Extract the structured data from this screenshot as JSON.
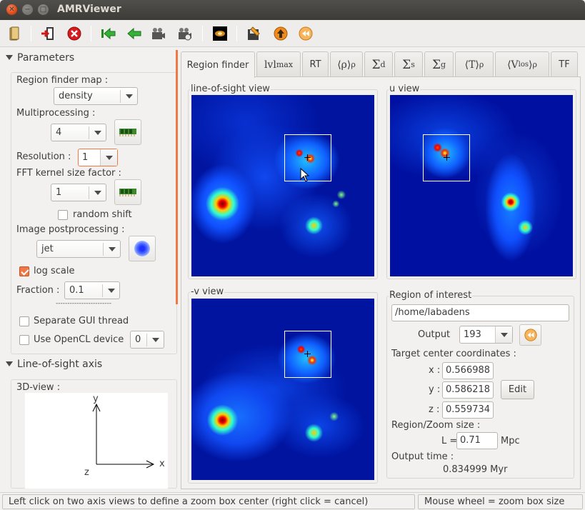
{
  "window": {
    "title": "AMRViewer"
  },
  "toolbar": {
    "icons": [
      "open-folder-icon",
      "exit-icon",
      "stop-icon",
      "first-icon",
      "back-icon",
      "camera-icon",
      "video-icon",
      "galaxy-icon",
      "save-icon",
      "up-icon",
      "rewind-icon"
    ]
  },
  "params": {
    "header": "Parameters",
    "region_map_label": "Region finder map :",
    "region_map_value": "density",
    "multiproc_label": "Multiprocessing :",
    "multiproc_value": "4",
    "resolution_label": "Resolution :",
    "resolution_value": "1",
    "fft_label": "FFT kernel size factor :",
    "fft_value": "1",
    "random_shift_label": "random shift",
    "random_shift_checked": false,
    "postproc_label": "Image postprocessing :",
    "postproc_value": "jet",
    "log_scale_label": "log scale",
    "log_scale_checked": true,
    "fraction_label": "Fraction :",
    "fraction_value": "0.1",
    "dashes": "------------------------",
    "sep_gui_label": "Separate GUI thread",
    "sep_gui_checked": false,
    "opencl_label": "Use OpenCL device",
    "opencl_checked": false,
    "opencl_device": "0"
  },
  "los": {
    "header": "Line-of-sight axis",
    "view3d_label": "3D-view :",
    "axis_y": "y",
    "axis_x": "x",
    "axis_z": "z"
  },
  "tabs": [
    {
      "label": "Region finder",
      "active": true
    },
    {
      "label": "lvl",
      "sub": "max"
    },
    {
      "label": "RT"
    },
    {
      "label": "⟨ρ⟩",
      "sub": "ρ"
    },
    {
      "label": "Σ",
      "sub": "d"
    },
    {
      "label": "Σ",
      "sub": "s"
    },
    {
      "label": "Σ",
      "sub": "g"
    },
    {
      "label": "⟨T⟩",
      "sub": "ρ"
    },
    {
      "label": "⟨V",
      "sub2": "los",
      "label2": "⟩",
      "sub": "ρ"
    },
    {
      "label": "TF"
    }
  ],
  "views": {
    "los_title": "line-of-sight view",
    "u_title": "u view",
    "v_title": "-v view"
  },
  "roi": {
    "title": "Region of interest",
    "path": "/home/labadens",
    "output_label": "Output",
    "output_value": "193",
    "target_label": "Target center coordinates :",
    "x_label": "x :",
    "x_value": "0.566988",
    "y_label": "y :",
    "y_value": "0.586218",
    "z_label": "z :",
    "z_value": "0.559734",
    "edit_label": "Edit",
    "zoom_label": "Region/Zoom size :",
    "L_label": "L =",
    "L_value": "0.71",
    "L_unit": "Mpc",
    "time_label": "Output time :",
    "time_value": "0.834999 Myr"
  },
  "status": {
    "left": "Left click on two axis views to define a zoom box center (right click = cancel)",
    "right": "Mouse wheel = zoom box size"
  },
  "colors": {
    "accent": "#f07746",
    "view_bg": "#0018a8"
  }
}
